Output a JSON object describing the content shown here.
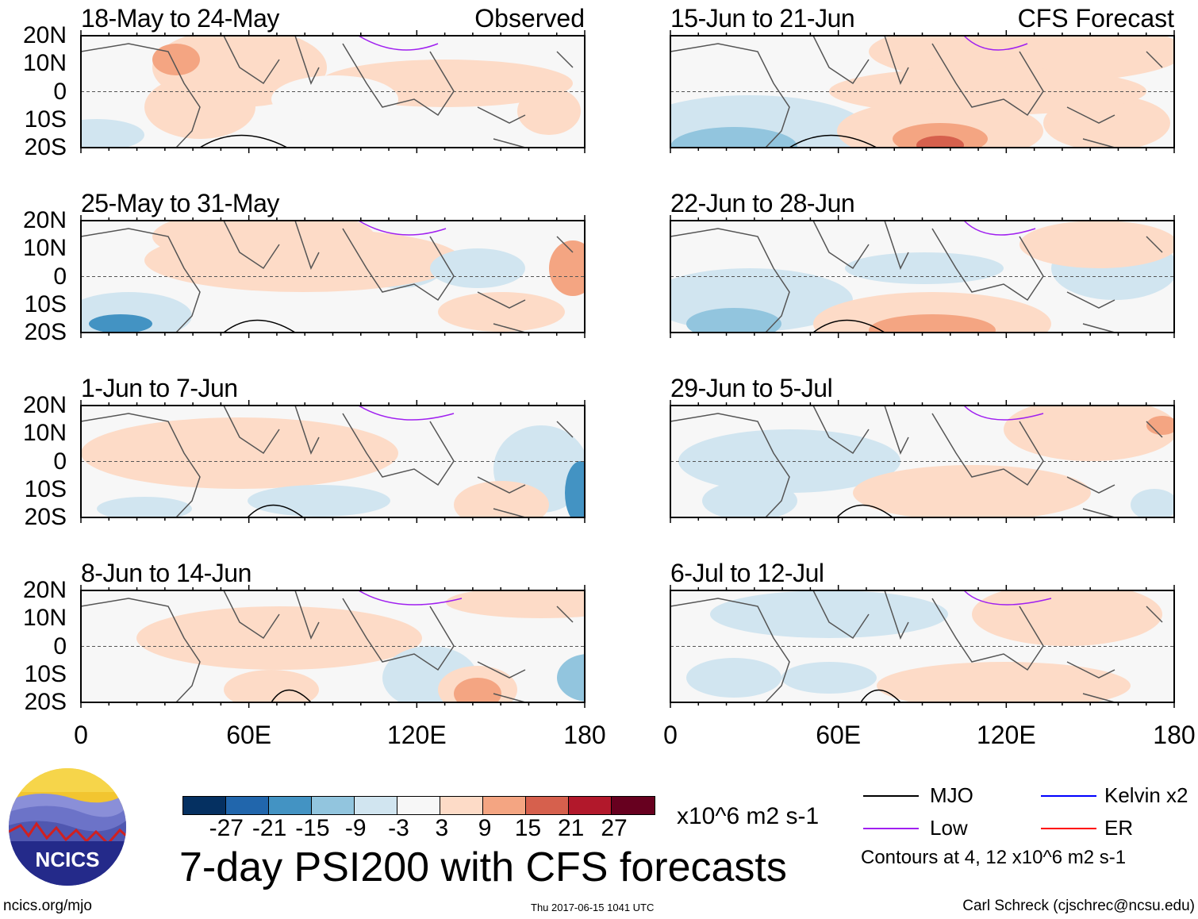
{
  "chart_data": {
    "type": "heatmap",
    "title": "7-day PSI200 with CFS forecasts",
    "units": "x10^6 m2 s-1",
    "colorbar": {
      "ticks": [
        "-27",
        "-21",
        "-15",
        "-9",
        "-3",
        "3",
        "9",
        "15",
        "21",
        "27"
      ],
      "colors": [
        "#053061",
        "#2166ac",
        "#4393c3",
        "#92c5de",
        "#d1e5f0",
        "#f7f7f7",
        "#fddbc7",
        "#f4a582",
        "#d6604d",
        "#b2182b",
        "#67001f"
      ]
    },
    "ylabels": [
      "20N",
      "10N",
      "0",
      "10S",
      "20S"
    ],
    "xlabels": [
      "0",
      "60E",
      "120E",
      "180"
    ],
    "columns": [
      {
        "tag": "Observed",
        "panels": [
          "18-May to 24-May",
          "25-May to 31-May",
          "1-Jun to 7-Jun",
          "8-Jun to 14-Jun"
        ]
      },
      {
        "tag": "CFS Forecast",
        "panels": [
          "15-Jun to 21-Jun",
          "22-Jun to 28-Jun",
          "29-Jun to 5-Jul",
          "6-Jul to 12-Jul"
        ]
      }
    ],
    "legend": [
      {
        "label": "MJO",
        "color": "#000000"
      },
      {
        "label": "Kelvin x2",
        "color": "#0000ff"
      },
      {
        "label": "Low",
        "color": "#a020f0"
      },
      {
        "label": "ER",
        "color": "#ff0000"
      }
    ],
    "contour_note": "Contours at 4, 12 x10^6 m2 s-1"
  },
  "logo": {
    "text": "NCICS"
  },
  "footer": {
    "url": "ncics.org/mjo",
    "timestamp": "Thu 2017-06-15 1041 UTC",
    "author": "Carl Schreck (cjschrec@ncsu.edu)"
  }
}
